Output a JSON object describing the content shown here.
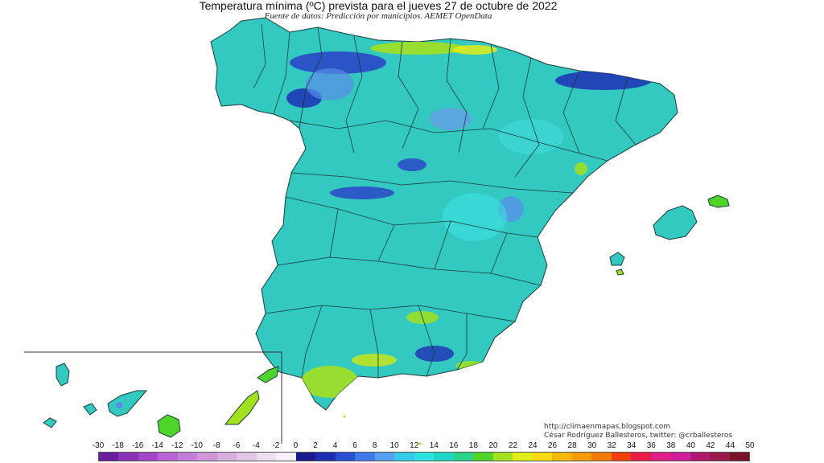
{
  "title": "Temperatura mínima (ºC) prevista para el jueves 27 de octubre de 2022",
  "subtitle": "Fuente de datos: Predicción por municipios. AEMET OpenData",
  "credits": {
    "blog": "http://climaenmapas.blogspot.com",
    "author": "César Rodríguez Ballesteros, twitter: @crballesteros"
  },
  "legend": {
    "labels": [
      "-30",
      "-18",
      "-16",
      "-14",
      "-12",
      "-10",
      "-8",
      "-6",
      "-4",
      "-2",
      "0",
      "2",
      "4",
      "6",
      "8",
      "10",
      "12",
      "14",
      "16",
      "18",
      "20",
      "22",
      "24",
      "26",
      "28",
      "30",
      "32",
      "34",
      "36",
      "38",
      "40",
      "42",
      "44",
      "50"
    ],
    "colors": [
      "#6a1fa0",
      "#8a2fb8",
      "#a347c8",
      "#b864d4",
      "#c57ed8",
      "#cf96d8",
      "#d8aede",
      "#e2c6e6",
      "#ece0ef",
      "#f6f2f8",
      "#1a1a8c",
      "#1f2fb4",
      "#2a4fd6",
      "#3f78e8",
      "#56a0ef",
      "#38c8e8",
      "#2ee2e2",
      "#20d6c4",
      "#2ad48a",
      "#4ed42a",
      "#a2e020",
      "#e2ec18",
      "#f4da10",
      "#f5b808",
      "#f59a08",
      "#f47a08",
      "#f04010",
      "#e81e48",
      "#e01e86",
      "#d01e9a",
      "#b01a6e",
      "#9a1a4a",
      "#7c1228"
    ]
  },
  "colors": {
    "base": "#33c9c0",
    "cold": "#1f2fb4",
    "cool": "#5a8ce8",
    "warm": "#a2e020",
    "water": "#ffffff"
  }
}
